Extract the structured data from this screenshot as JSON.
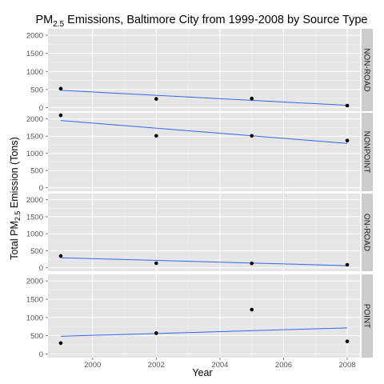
{
  "chart_data": {
    "type": "scatter",
    "title": {
      "prefix": "PM",
      "subscript": "2.5",
      "suffix": " Emissions, Baltimore City from 1999-2008 by Source Type"
    },
    "xlabel": "Year",
    "ylabel": {
      "prefix": "Total PM",
      "subscript": "2.5",
      "suffix": " Emission (Tons)"
    },
    "xlim": [
      1998.6,
      2008.4
    ],
    "ylim": [
      -100,
      2180
    ],
    "x_ticks": [
      2000,
      2002,
      2004,
      2006,
      2008
    ],
    "y_ticks": [
      0,
      500,
      1000,
      1500,
      2000
    ],
    "grid": true,
    "trend_line_color": "#3366ff",
    "point_color": "#000000",
    "panel_background": "#e5e5e5",
    "strip_background": "#cccccc",
    "facets": [
      {
        "name": "NON-ROAD",
        "points": [
          {
            "x": 1999,
            "y": 523
          },
          {
            "x": 2002,
            "y": 241
          },
          {
            "x": 2005,
            "y": 249
          },
          {
            "x": 2008,
            "y": 55
          }
        ],
        "trend": [
          {
            "x": 1999,
            "y": 478
          },
          {
            "x": 2008,
            "y": 62
          }
        ]
      },
      {
        "name": "NONPOINT",
        "points": [
          {
            "x": 1999,
            "y": 2108
          },
          {
            "x": 2002,
            "y": 1510
          },
          {
            "x": 2005,
            "y": 1510
          },
          {
            "x": 2008,
            "y": 1373
          }
        ],
        "trend": [
          {
            "x": 1999,
            "y": 1955
          },
          {
            "x": 2008,
            "y": 1290
          }
        ]
      },
      {
        "name": "ON-ROAD",
        "points": [
          {
            "x": 1999,
            "y": 347
          },
          {
            "x": 2002,
            "y": 134
          },
          {
            "x": 2005,
            "y": 130
          },
          {
            "x": 2008,
            "y": 88
          }
        ],
        "trend": [
          {
            "x": 1999,
            "y": 295
          },
          {
            "x": 2008,
            "y": 62
          }
        ]
      },
      {
        "name": "POINT",
        "points": [
          {
            "x": 1999,
            "y": 297
          },
          {
            "x": 2002,
            "y": 570
          },
          {
            "x": 2005,
            "y": 1215
          },
          {
            "x": 2008,
            "y": 345
          }
        ],
        "trend": [
          {
            "x": 1999,
            "y": 485
          },
          {
            "x": 2008,
            "y": 715
          }
        ]
      }
    ]
  }
}
